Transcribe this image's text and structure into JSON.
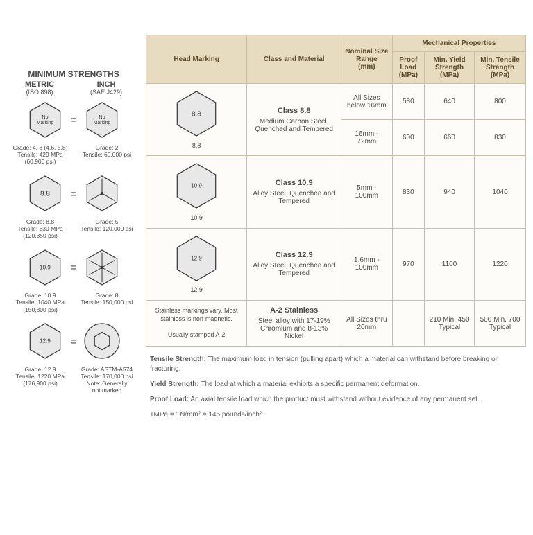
{
  "left": {
    "title": "MINIMUM STRENGTHS",
    "metric_label": "METRIC",
    "metric_sub": "(ISO 898)",
    "inch_label": "INCH",
    "inch_sub": "(SAE J429)",
    "rows": [
      {
        "metric_mark": "No Marking",
        "inch_mark": "No Marking",
        "metric_text": "Grade: 4, 8 (4.6, 5.8)\nTensile: 429 MPa\n(60,900 psi)",
        "inch_text": "Grade: 2\nTensile: 60,000 psi"
      },
      {
        "metric_mark": "8.8",
        "inch_radial": 3,
        "metric_text": "Grade: 8.8\nTensile: 830 MPa\n(120,350 psi)",
        "inch_text": "Grade: 5\nTensile: 120,000 psi"
      },
      {
        "metric_mark": "10.9",
        "inch_radial": 6,
        "metric_text": "Grade: 10.9\nTensile: 1040 MPa\n(150,800 psi)",
        "inch_text": "Grade: 8\nTensile: 150,000 psi"
      },
      {
        "metric_mark": "12.9",
        "inch_socket": true,
        "metric_text": "Grade: 12.9\nTensile: 1220 MPa\n(176,900 psi)",
        "inch_text": "Grade: ASTM-A574\nTensile: 170,000 psi\nNote: Generally\nnot marked"
      }
    ]
  },
  "table": {
    "headers": {
      "head_marking": "Head Marking",
      "class_material": "Class and Material",
      "nominal": "Nominal Size Range",
      "nominal_unit": "(mm)",
      "mech_group": "Mechanical Properties",
      "proof": "Proof Load",
      "proof_unit": "(MPa)",
      "yield": "Min. Yield Strength",
      "yield_unit": "(MPa)",
      "tensile": "Min. Tensile Strength",
      "tensile_unit": "(MPa)"
    },
    "rows": [
      {
        "mark_label": "8.8",
        "class_name": "Class 8.8",
        "material": "Medium Carbon Steel, Quenched and Tempered",
        "sizes": [
          {
            "range": "All Sizes below 16mm",
            "proof": "580",
            "yield": "640",
            "tensile": "800"
          },
          {
            "range": "16mm - 72mm",
            "proof": "600",
            "yield": "660",
            "tensile": "830"
          }
        ]
      },
      {
        "mark_label": "10.9",
        "class_name": "Class 10.9",
        "material": "Alloy Steel, Quenched and Tempered",
        "sizes": [
          {
            "range": "5mm - 100mm",
            "proof": "830",
            "yield": "940",
            "tensile": "1040"
          }
        ]
      },
      {
        "mark_label": "12.9",
        "class_name": "Class 12.9",
        "material": "Alloy Steel, Quenched and Tempered",
        "sizes": [
          {
            "range": "1.6mm - 100mm",
            "proof": "970",
            "yield": "1100",
            "tensile": "1220"
          }
        ]
      },
      {
        "mark_text": "Stainless markings vary. Most stainless is non-magnetic.\n\nUsually stamped A-2",
        "class_name": "A-2 Stainless",
        "material": "Steel alloy with 17-19% Chromium and 8-13% Nickel",
        "sizes": [
          {
            "range": "All Sizes thru 20mm",
            "proof": "",
            "yield": "210 Min. 450 Typical",
            "tensile": "500 Min. 700 Typical"
          }
        ]
      }
    ]
  },
  "defs": {
    "tensile_label": "Tensile Strength:",
    "tensile_text": " The maximum load in tension (pulling apart) which a material can withstand before breaking or fracturing.",
    "yield_label": "Yield Strength:",
    "yield_text": " The load at which a material exhibits a specific permanent deformation.",
    "proof_label": "Proof Load:",
    "proof_text": " An axial tensile load which the product must withstand without evidence of any permanent set.",
    "unit_conv": "1MPa = 1N/mm² = 145 pounds/inch²"
  },
  "colors": {
    "header_bg": "#e8dcc0",
    "border": "#c9bfa8",
    "cell_bg": "#fdfcf8",
    "hex_fill": "#e8e8e8",
    "hex_stroke": "#333333"
  }
}
